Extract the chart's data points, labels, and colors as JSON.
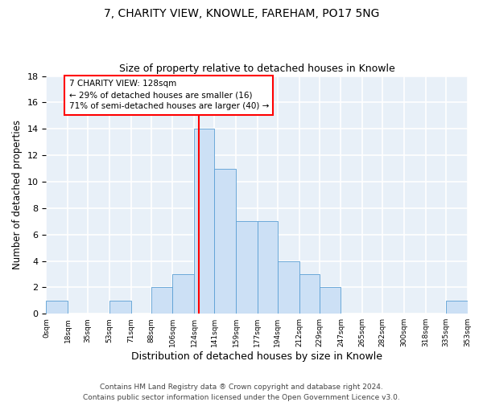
{
  "title1": "7, CHARITY VIEW, KNOWLE, FAREHAM, PO17 5NG",
  "title2": "Size of property relative to detached houses in Knowle",
  "xlabel": "Distribution of detached houses by size in Knowle",
  "ylabel": "Number of detached properties",
  "bin_edges": [
    0,
    18,
    35,
    53,
    71,
    88,
    106,
    124,
    141,
    159,
    177,
    194,
    212,
    229,
    247,
    265,
    282,
    300,
    318,
    335,
    353
  ],
  "bin_counts": [
    1,
    0,
    0,
    1,
    0,
    2,
    3,
    14,
    11,
    7,
    7,
    4,
    3,
    2,
    0,
    0,
    0,
    0,
    0,
    1
  ],
  "bar_facecolor": "#cce0f5",
  "bar_edgecolor": "#5a9fd4",
  "vline_x": 128,
  "vline_color": "red",
  "annotation_text": "7 CHARITY VIEW: 128sqm\n← 29% of detached houses are smaller (16)\n71% of semi-detached houses are larger (40) →",
  "annotation_box_edgecolor": "red",
  "annotation_box_facecolor": "white",
  "ylim": [
    0,
    18
  ],
  "yticks": [
    0,
    2,
    4,
    6,
    8,
    10,
    12,
    14,
    16,
    18
  ],
  "tick_labels": [
    "0sqm",
    "18sqm",
    "35sqm",
    "53sqm",
    "71sqm",
    "88sqm",
    "106sqm",
    "124sqm",
    "141sqm",
    "159sqm",
    "177sqm",
    "194sqm",
    "212sqm",
    "229sqm",
    "247sqm",
    "265sqm",
    "282sqm",
    "300sqm",
    "318sqm",
    "335sqm",
    "353sqm"
  ],
  "footer": "Contains HM Land Registry data ® Crown copyright and database right 2024.\nContains public sector information licensed under the Open Government Licence v3.0.",
  "bg_color": "#e8f0f8",
  "grid_color": "white",
  "title1_fontsize": 10,
  "title2_fontsize": 9,
  "xlabel_fontsize": 9,
  "ylabel_fontsize": 8.5,
  "footer_fontsize": 6.5,
  "annotation_fontsize": 7.5
}
